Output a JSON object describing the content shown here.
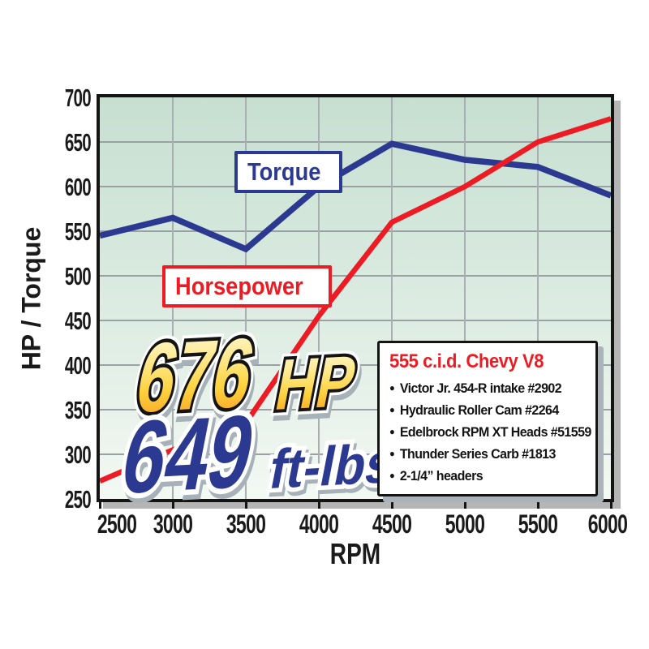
{
  "chart_data": {
    "type": "line",
    "title": "",
    "xlabel": "RPM",
    "ylabel": "HP / Torque",
    "x": [
      2500,
      3000,
      3500,
      4000,
      4500,
      5000,
      5500,
      6000
    ],
    "xlim": [
      2500,
      6000
    ],
    "ylim": [
      250,
      700
    ],
    "ytick_step": 50,
    "grid": true,
    "legend_position": "on-chart boxed labels",
    "plot_bg_top": "#c6dfd1",
    "plot_bg_bottom": "#f3f8f3",
    "gridline_color": "#9aa1a4",
    "series": [
      {
        "name": "Torque",
        "unit": "ft-lbs",
        "color": "#2b3990",
        "values": [
          545,
          565,
          530,
          600,
          648,
          630,
          622,
          590
        ]
      },
      {
        "name": "Horsepower",
        "unit": "HP",
        "color": "#ed1c24",
        "values": [
          270,
          305,
          335,
          455,
          560,
          600,
          650,
          676
        ]
      }
    ]
  },
  "annotations": {
    "peak_hp": {
      "value": "676",
      "unit": "HP",
      "fill_top": "#fffbe4",
      "fill_bottom": "#f6921e",
      "outline": "#141414"
    },
    "peak_torque": {
      "value": "649",
      "unit": "ft-lbs",
      "color": "#2b3990",
      "outline": "#ffffff"
    }
  },
  "spec_box": {
    "title": "555 c.i.d. Chevy V8",
    "title_color": "#ed1c24",
    "items": [
      "Victor Jr. 454-R intake #2902",
      "Hydraulic Roller Cam #2264",
      "Edelbrock RPM XT Heads #51559",
      "Thunder Series Carb #1813",
      "2-1/4” headers"
    ]
  }
}
